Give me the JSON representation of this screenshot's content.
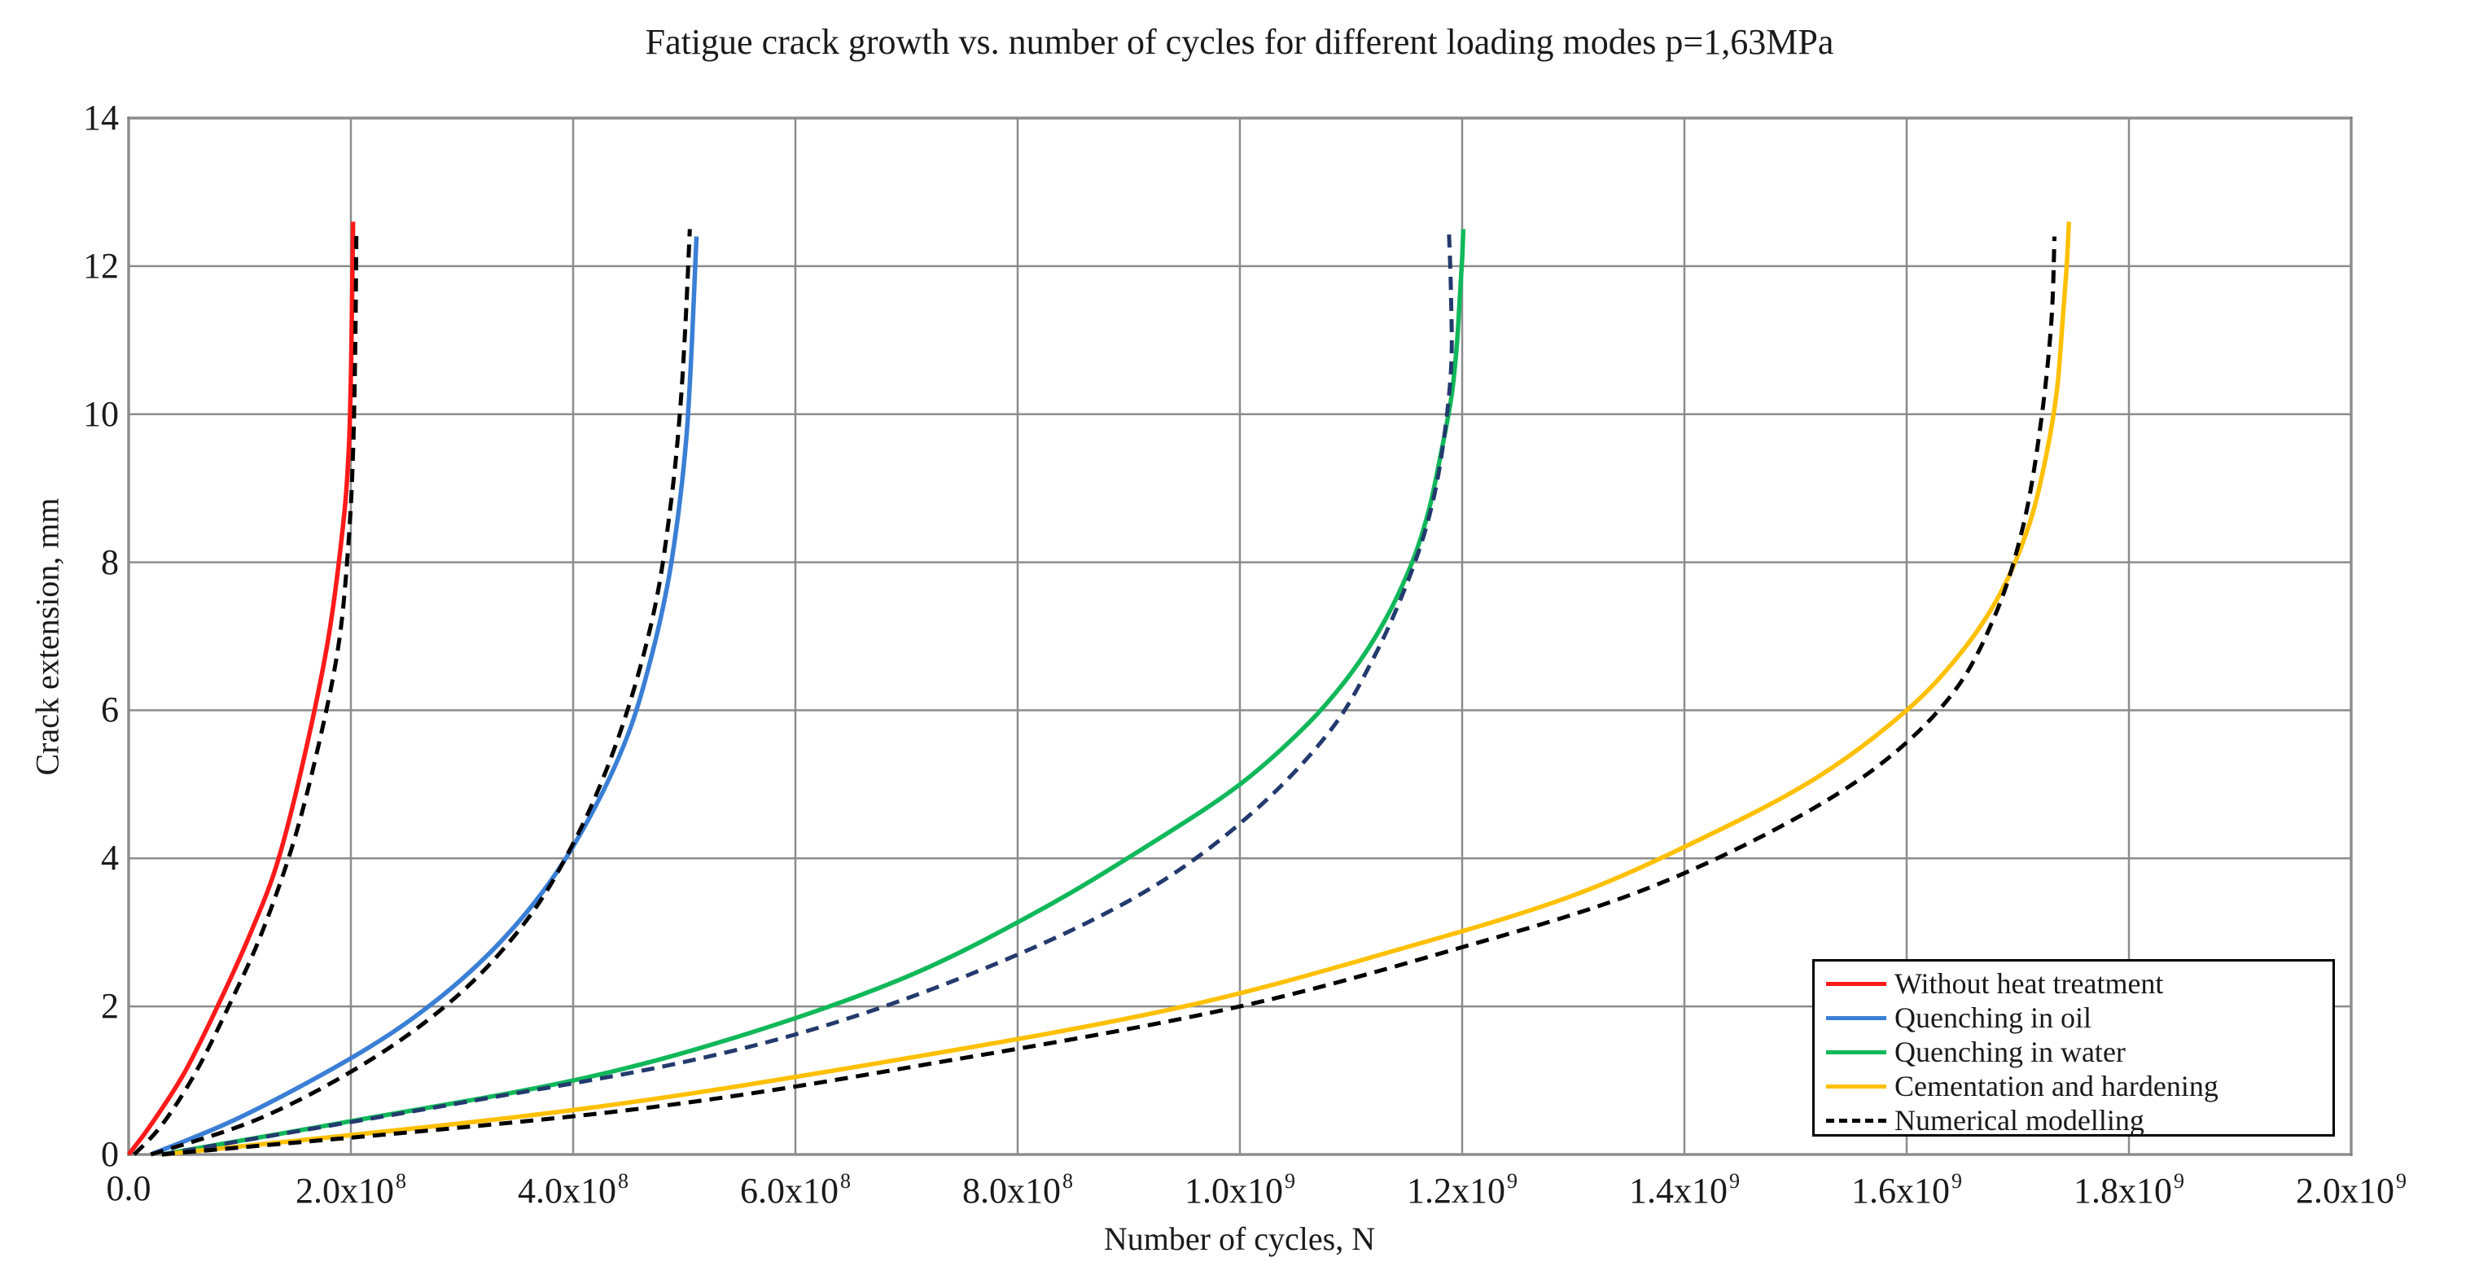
{
  "chart_data": {
    "type": "line",
    "title": "Fatigue crack growth vs. number of cycles for different loading modes p=1,63MPa",
    "xlabel": "Number of cycles, N",
    "ylabel": "Crack extension, mm",
    "xlim": [
      0,
      2000000000
    ],
    "ylim": [
      0,
      14
    ],
    "grid": true,
    "legend_position": "bottom-right",
    "yticks": [
      {
        "value": 0,
        "label": "0"
      },
      {
        "value": 2,
        "label": "2"
      },
      {
        "value": 4,
        "label": "4"
      },
      {
        "value": 6,
        "label": "6"
      },
      {
        "value": 8,
        "label": "8"
      },
      {
        "value": 10,
        "label": "10"
      },
      {
        "value": 12,
        "label": "12"
      },
      {
        "value": 14,
        "label": "14"
      }
    ],
    "xticks": [
      {
        "value": 0,
        "mantissa": "0.0",
        "exp": ""
      },
      {
        "value": 200000000,
        "mantissa": "2.0x10",
        "exp": "8"
      },
      {
        "value": 400000000,
        "mantissa": "4.0x10",
        "exp": "8"
      },
      {
        "value": 600000000,
        "mantissa": "6.0x10",
        "exp": "8"
      },
      {
        "value": 800000000,
        "mantissa": "8.0x10",
        "exp": "8"
      },
      {
        "value": 1000000000,
        "mantissa": "1.0x10",
        "exp": "9"
      },
      {
        "value": 1200000000,
        "mantissa": "1.2x10",
        "exp": "9"
      },
      {
        "value": 1400000000,
        "mantissa": "1.4x10",
        "exp": "9"
      },
      {
        "value": 1600000000,
        "mantissa": "1.6x10",
        "exp": "9"
      },
      {
        "value": 1800000000,
        "mantissa": "1.8x10",
        "exp": "9"
      },
      {
        "value": 2000000000,
        "mantissa": "2.0x10",
        "exp": "9"
      }
    ],
    "legend": [
      {
        "label": "Without heat treatment",
        "color": "#ff1a1a",
        "dashed": false
      },
      {
        "label": "Quenching in oil",
        "color": "#3a7fd5",
        "dashed": false
      },
      {
        "label": "Quenching in water",
        "color": "#10b85a",
        "dashed": false
      },
      {
        "label": "Cementation and hardening",
        "color": "#ffc000",
        "dashed": false
      },
      {
        "label": "Numerical modelling",
        "color": "#000000",
        "dashed": true
      }
    ],
    "series": [
      {
        "name": "Without heat treatment",
        "color": "#ff1a1a",
        "dashed": false,
        "x": [
          0,
          20000000,
          50000000,
          80000000,
          110000000,
          135000000,
          160000000,
          180000000,
          193000000,
          198000000,
          200000000,
          201000000,
          202000000
        ],
        "y": [
          0,
          0.4,
          1.1,
          2.0,
          3.0,
          4.0,
          5.5,
          7.0,
          8.5,
          9.5,
          10.5,
          11.5,
          12.6
        ]
      },
      {
        "name": "Without heat treatment (numerical)",
        "color": "#000000",
        "dashed": true,
        "x": [
          5000000,
          30000000,
          60000000,
          90000000,
          120000000,
          150000000,
          175000000,
          190000000,
          198000000,
          202000000,
          204000000,
          205000000
        ],
        "y": [
          0,
          0.4,
          1.1,
          2.0,
          3.0,
          4.3,
          5.8,
          7.0,
          8.3,
          9.5,
          11.0,
          12.5
        ]
      },
      {
        "name": "Quenching in oil",
        "color": "#3a7fd5",
        "dashed": false,
        "x": [
          20000000,
          100000000,
          200000000,
          270000000,
          330000000,
          380000000,
          420000000,
          450000000,
          470000000,
          485000000,
          495000000,
          502000000,
          506000000,
          509000000,
          511000000
        ],
        "y": [
          0,
          0.5,
          1.3,
          2.0,
          2.8,
          3.7,
          4.7,
          5.7,
          6.7,
          7.7,
          8.7,
          9.7,
          10.7,
          11.7,
          12.4
        ]
      },
      {
        "name": "Quenching in oil (numerical)",
        "color": "#000000",
        "dashed": true,
        "x": [
          20000000,
          120000000,
          220000000,
          300000000,
          360000000,
          400000000,
          430000000,
          455000000,
          475000000,
          488000000,
          496000000,
          501000000,
          505000000
        ],
        "y": [
          0,
          0.5,
          1.3,
          2.2,
          3.2,
          4.2,
          5.2,
          6.3,
          7.5,
          8.8,
          10.0,
          11.2,
          12.5
        ]
      },
      {
        "name": "Quenching in water",
        "color": "#10b85a",
        "dashed": false,
        "x": [
          30000000,
          200000000,
          400000000,
          550000000,
          700000000,
          820000000,
          920000000,
          1000000000,
          1060000000,
          1100000000,
          1130000000,
          1155000000,
          1170000000,
          1180000000,
          1190000000,
          1195000000,
          1198000000,
          1200000000,
          1201000000
        ],
        "y": [
          0,
          0.45,
          1.0,
          1.6,
          2.4,
          3.3,
          4.2,
          5.0,
          5.8,
          6.5,
          7.2,
          8.0,
          8.7,
          9.4,
          10.2,
          10.9,
          11.6,
          12.1,
          12.5
        ]
      },
      {
        "name": "Quenching in water (numerical)",
        "color": "#233a6e",
        "dashed": true,
        "x": [
          30000000,
          300000000,
          500000000,
          650000000,
          800000000,
          920000000,
          1010000000,
          1080000000,
          1120000000,
          1150000000,
          1170000000,
          1182000000,
          1190000000,
          1190000000,
          1188000000
        ],
        "y": [
          0,
          0.7,
          1.25,
          1.85,
          2.7,
          3.6,
          4.6,
          5.7,
          6.7,
          7.7,
          8.6,
          9.5,
          10.6,
          11.6,
          12.5
        ]
      },
      {
        "name": "Cementation and hardening",
        "color": "#ffc000",
        "dashed": false,
        "x": [
          30000000,
          400000000,
          700000000,
          950000000,
          1150000000,
          1300000000,
          1420000000,
          1520000000,
          1600000000,
          1650000000,
          1685000000,
          1710000000,
          1725000000,
          1735000000,
          1740000000,
          1744000000,
          1746000000
        ],
        "y": [
          0,
          0.6,
          1.3,
          2.0,
          2.8,
          3.5,
          4.3,
          5.1,
          6.0,
          6.8,
          7.6,
          8.5,
          9.4,
          10.3,
          11.2,
          12.0,
          12.6
        ]
      },
      {
        "name": "Cementation and hardening (numerical)",
        "color": "#000000",
        "dashed": true,
        "x": [
          30000000,
          450000000,
          750000000,
          1000000000,
          1200000000,
          1350000000,
          1470000000,
          1570000000,
          1640000000,
          1680000000,
          1705000000,
          1720000000,
          1730000000,
          1733000000
        ],
        "y": [
          0,
          0.6,
          1.3,
          2.0,
          2.8,
          3.5,
          4.3,
          5.2,
          6.2,
          7.3,
          8.5,
          9.8,
          11.2,
          12.4
        ]
      }
    ]
  }
}
